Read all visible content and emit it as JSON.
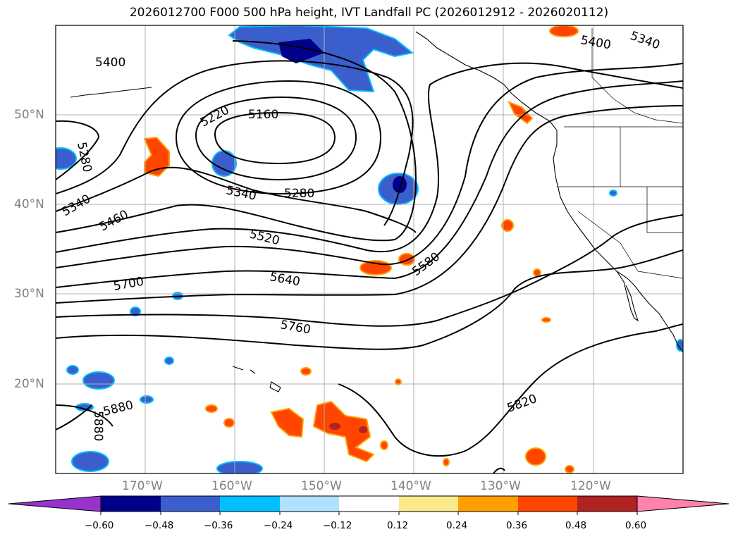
{
  "title": "2026012700 F000 500 hPa height, IVT Landfall PC (2026012912 - 2026020112)",
  "lat_labels": [
    "50°N",
    "40°N",
    "30°N",
    "20°N"
  ],
  "lon_labels": [
    "170°W",
    "160°W",
    "150°W",
    "140°W",
    "130°W",
    "120°W"
  ],
  "contour_labels": [
    "5400",
    "5340",
    "5400",
    "5220",
    "5160",
    "5280",
    "5340",
    "5280",
    "5340",
    "5460",
    "5520",
    "5580",
    "5640",
    "5700",
    "5760",
    "5820",
    "5880",
    "5880"
  ],
  "colorbar": {
    "ticks": [
      "−0.60",
      "−0.48",
      "−0.36",
      "−0.24",
      "−0.12",
      "0.12",
      "0.24",
      "0.36",
      "0.48",
      "0.60"
    ],
    "colors": [
      "#9932cc",
      "#00008b",
      "#3a5fcd",
      "#00bfff",
      "#b0e2ff",
      "#ffffff",
      "#fce98a",
      "#ff9f00",
      "#ff4500",
      "#b22222",
      "#ff82ab"
    ]
  },
  "map": {
    "region": "North Pacific",
    "lat_range": [
      10,
      60
    ],
    "lon_range": [
      -180,
      -110
    ]
  }
}
